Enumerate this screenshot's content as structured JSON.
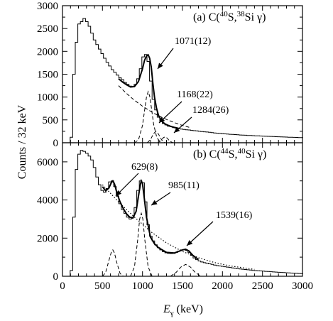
{
  "figure": {
    "ylabel": "Counts / 32 keV",
    "xlabel": "Eγ (keV)",
    "xlabel_main": "E",
    "xlabel_sub": "γ",
    "xlabel_unit": " (keV)"
  },
  "panels": [
    {
      "title_prefix": "(a) C(",
      "title_mass1": "40",
      "title_mid": "S,",
      "title_mass2": "38",
      "title_end": "Si γ)",
      "title_full": "(a) C(40S,38Si γ)",
      "annotations": [
        "1071(12)",
        "1168(22)",
        "1284(26)"
      ]
    },
    {
      "title_prefix": "(b) C(",
      "title_mass1": "44",
      "title_mid": "S,",
      "title_mass2": "40",
      "title_end": "Si γ)",
      "title_full": "(b) C(44S,40Si γ)",
      "annotations": [
        "629(8)",
        "985(11)",
        "1539(16)"
      ]
    }
  ],
  "chart_data": [
    {
      "type": "line",
      "title": "(a) C(40S,38Si γ)",
      "xlabel": "Eγ (keV)",
      "ylabel": "Counts / 32 keV",
      "xlim": [
        0,
        3000
      ],
      "ylim": [
        0,
        3000
      ],
      "xticks": [
        0,
        500,
        1000,
        1500,
        2000,
        2500,
        3000
      ],
      "yticks": [
        0,
        500,
        1000,
        1500,
        2000,
        2500,
        3000
      ],
      "grid": false,
      "legend": "none",
      "annotations": [
        {
          "text": "1071(12)",
          "x": 1071,
          "y": 1900
        },
        {
          "text": "1168(22)",
          "x": 1168,
          "y": 420
        },
        {
          "text": "1284(26)",
          "x": 1284,
          "y": 180
        }
      ],
      "series": [
        {
          "style": "histogram",
          "x": [
            112,
            144,
            176,
            208,
            240,
            272,
            304,
            336,
            368,
            400,
            432,
            464,
            496,
            528,
            560,
            592,
            624,
            656,
            688,
            720,
            752,
            784,
            816,
            848,
            880,
            912,
            944,
            976,
            1008,
            1040,
            1072,
            1104,
            1136,
            1168,
            1200,
            1232,
            1264,
            1296,
            1328,
            1360,
            1392,
            1424,
            1456,
            1488,
            1520,
            1552,
            1584,
            1616,
            1648,
            1680,
            1712,
            1744,
            1776,
            1808,
            1840,
            1872,
            1904,
            1936,
            1968,
            2000,
            2032,
            2064,
            2096,
            2128,
            2160,
            2192,
            2224,
            2256,
            2288,
            2320,
            2352,
            2384,
            2416,
            2448,
            2480,
            2512,
            2544,
            2576,
            2608,
            2640,
            2672,
            2704,
            2736,
            2768,
            2800,
            2832,
            2864,
            2896,
            2928,
            2960,
            2992
          ],
          "y": [
            120,
            1500,
            2200,
            2600,
            2650,
            2720,
            2650,
            2550,
            2400,
            2250,
            2150,
            2050,
            1950,
            1850,
            1760,
            1680,
            1600,
            1540,
            1480,
            1420,
            1380,
            1320,
            1280,
            1240,
            1230,
            1280,
            1400,
            1620,
            1880,
            1930,
            1780,
            1350,
            950,
            720,
            560,
            470,
            420,
            390,
            360,
            350,
            330,
            320,
            310,
            300,
            290,
            285,
            280,
            270,
            265,
            260,
            250,
            245,
            240,
            235,
            230,
            222,
            215,
            210,
            205,
            200,
            195,
            190,
            185,
            182,
            178,
            175,
            170,
            168,
            165,
            160,
            158,
            155,
            152,
            150,
            148,
            145,
            142,
            140,
            138,
            135,
            132,
            130,
            128,
            126,
            124,
            122,
            120,
            118,
            116,
            114,
            112
          ]
        },
        {
          "style": "fit-total",
          "x": [
            700,
            750,
            800,
            850,
            900,
            950,
            1000,
            1025,
            1050,
            1071,
            1090,
            1110,
            1130,
            1150,
            1175,
            1200,
            1225,
            1250,
            1275,
            1300,
            1350,
            1400,
            1450
          ],
          "y": [
            1400,
            1330,
            1270,
            1220,
            1230,
            1340,
            1620,
            1800,
            1900,
            1925,
            1850,
            1650,
            1300,
            1000,
            760,
            600,
            520,
            460,
            420,
            395,
            360,
            335,
            315
          ]
        },
        {
          "style": "dashed-background",
          "x": [
            700,
            800,
            900,
            1000,
            1100,
            1200,
            1300,
            1400,
            1500,
            1600
          ],
          "y": [
            1250,
            1080,
            930,
            800,
            690,
            590,
            510,
            440,
            380,
            330
          ]
        },
        {
          "style": "dashed-peak",
          "centroid": 1071,
          "x": [
            900,
            950,
            1000,
            1030,
            1050,
            1071,
            1090,
            1110,
            1140,
            1180,
            1230
          ],
          "y": [
            0,
            60,
            380,
            750,
            1000,
            1120,
            1020,
            780,
            400,
            110,
            0
          ]
        },
        {
          "style": "dashed-peak",
          "centroid": 1168,
          "x": [
            1060,
            1100,
            1140,
            1168,
            1200,
            1240,
            1280
          ],
          "y": [
            0,
            70,
            200,
            250,
            190,
            60,
            0
          ]
        },
        {
          "style": "dashed-peak",
          "centroid": 1284,
          "x": [
            1190,
            1230,
            1260,
            1284,
            1310,
            1340,
            1380
          ],
          "y": [
            0,
            40,
            110,
            130,
            100,
            35,
            0
          ]
        }
      ]
    },
    {
      "type": "line",
      "title": "(b) C(44S,40Si γ)",
      "xlabel": "Eγ (keV)",
      "ylabel": "Counts / 32 keV",
      "xlim": [
        0,
        3000
      ],
      "ylim": [
        0,
        7000
      ],
      "xticks": [
        0,
        500,
        1000,
        1500,
        2000,
        2500,
        3000
      ],
      "yticks": [
        0,
        2000,
        4000,
        6000
      ],
      "grid": false,
      "legend": "none",
      "annotations": [
        {
          "text": "629(8)",
          "x": 629,
          "y": 5000
        },
        {
          "text": "985(11)",
          "x": 985,
          "y": 5000
        },
        {
          "text": "1539(16)",
          "x": 1539,
          "y": 1450
        }
      ],
      "series": [
        {
          "style": "histogram",
          "x": [
            112,
            144,
            176,
            208,
            240,
            272,
            304,
            336,
            368,
            400,
            432,
            464,
            496,
            528,
            560,
            592,
            624,
            656,
            688,
            720,
            752,
            784,
            816,
            848,
            880,
            912,
            944,
            976,
            1008,
            1040,
            1072,
            1104,
            1136,
            1168,
            1200,
            1232,
            1264,
            1296,
            1328,
            1360,
            1392,
            1424,
            1456,
            1488,
            1520,
            1552,
            1584,
            1616,
            1648,
            1680,
            1712,
            1744,
            1776,
            1808,
            1840,
            1872,
            1904,
            1936,
            1968,
            2000,
            2032,
            2064,
            2096,
            2128,
            2160,
            2192,
            2224,
            2256,
            2288,
            2320,
            2352,
            2384,
            2416,
            2448,
            2480,
            2512,
            2544,
            2576,
            2608,
            2640,
            2672,
            2704,
            2736,
            2768,
            2800,
            2832,
            2864,
            2896,
            2928,
            2960,
            2992
          ],
          "y": [
            300,
            3100,
            5600,
            6400,
            6600,
            6550,
            6450,
            6300,
            6100,
            5700,
            5200,
            4800,
            4500,
            4400,
            4600,
            4950,
            5000,
            4700,
            4200,
            3800,
            3500,
            3300,
            3100,
            3000,
            3100,
            3600,
            4500,
            5000,
            4900,
            3900,
            2700,
            2100,
            1850,
            1650,
            1500,
            1380,
            1290,
            1230,
            1200,
            1190,
            1200,
            1250,
            1320,
            1380,
            1400,
            1350,
            1250,
            1100,
            960,
            870,
            800,
            750,
            710,
            680,
            650,
            620,
            590,
            560,
            540,
            520,
            500,
            480,
            460,
            440,
            420,
            400,
            385,
            370,
            355,
            340,
            325,
            310,
            298,
            288,
            278,
            268,
            258,
            248,
            238,
            228,
            218,
            208,
            200,
            192,
            184,
            176,
            168,
            160,
            152,
            145,
            140
          ]
        },
        {
          "style": "fit-total",
          "x": [
            500,
            540,
            580,
            610,
            629,
            650,
            680,
            720,
            760,
            800,
            840,
            880,
            920,
            950,
            975,
            985,
            1000,
            1020,
            1050,
            1100,
            1150,
            1200,
            1300,
            1400,
            1450,
            1500,
            1539,
            1580,
            1630,
            1700
          ],
          "y": [
            4700,
            4480,
            4620,
            4900,
            5000,
            4850,
            4380,
            3900,
            3550,
            3280,
            3100,
            3050,
            3400,
            4200,
            4850,
            5000,
            4850,
            4200,
            3100,
            2050,
            1700,
            1500,
            1250,
            1220,
            1300,
            1380,
            1420,
            1330,
            1100,
            880
          ]
        },
        {
          "style": "dotted-background",
          "x": [
            500,
            700,
            900,
            1100,
            1300,
            1500,
            1700,
            1900,
            2100,
            2400
          ],
          "y": [
            4800,
            3900,
            3100,
            2350,
            1750,
            1300,
            970,
            720,
            540,
            360
          ]
        },
        {
          "style": "dashed-peak",
          "centroid": 629,
          "x": [
            500,
            540,
            580,
            610,
            629,
            650,
            680,
            720,
            760
          ],
          "y": [
            0,
            200,
            820,
            1250,
            1380,
            1220,
            700,
            150,
            0
          ]
        },
        {
          "style": "dashed-peak",
          "centroid": 985,
          "x": [
            850,
            900,
            940,
            965,
            985,
            1005,
            1030,
            1070,
            1120
          ],
          "y": [
            0,
            500,
            1900,
            3000,
            3300,
            3000,
            1900,
            500,
            0
          ]
        },
        {
          "style": "dashed-peak",
          "centroid": 1539,
          "x": [
            1350,
            1420,
            1480,
            1539,
            1600,
            1660,
            1730
          ],
          "y": [
            0,
            200,
            480,
            620,
            480,
            200,
            0
          ]
        }
      ]
    }
  ]
}
